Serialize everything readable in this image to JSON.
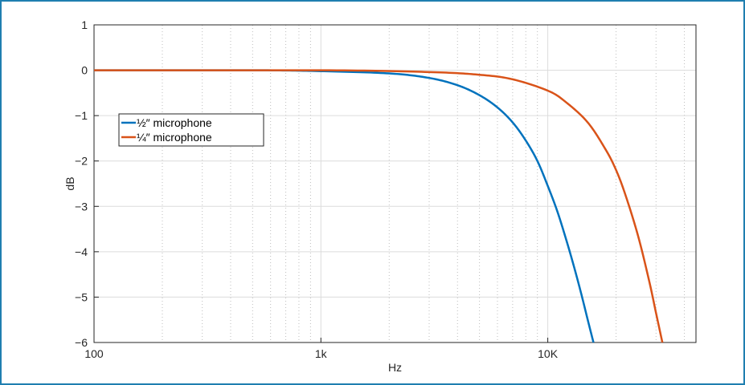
{
  "chart_data": {
    "type": "line",
    "title": "",
    "xlabel": "Hz",
    "ylabel": "dB",
    "x_scale": "log",
    "xlim": [
      100,
      45000
    ],
    "ylim": [
      -6,
      1
    ],
    "x_ticks": [
      {
        "value": 100,
        "label": "100"
      },
      {
        "value": 1000,
        "label": "1k"
      },
      {
        "value": 10000,
        "label": "10K"
      }
    ],
    "y_ticks": [
      {
        "value": 1,
        "label": "1"
      },
      {
        "value": 0,
        "label": "0"
      },
      {
        "value": -1,
        "label": "−1"
      },
      {
        "value": -2,
        "label": "−2"
      },
      {
        "value": -3,
        "label": "−3"
      },
      {
        "value": -4,
        "label": "−4"
      },
      {
        "value": -5,
        "label": "−5"
      },
      {
        "value": -6,
        "label": "−6"
      }
    ],
    "grid": true,
    "legend_position": "left",
    "series": [
      {
        "name": "½″ microphone",
        "color": "#0072bd",
        "x": [
          100,
          500,
          1000,
          2000,
          3000,
          4000,
          5000,
          6000,
          7000,
          8000,
          9000,
          10000,
          11000,
          12000,
          13000,
          14000,
          15000,
          15900
        ],
        "y": [
          0,
          0,
          -0.02,
          -0.07,
          -0.17,
          -0.33,
          -0.55,
          -0.82,
          -1.15,
          -1.55,
          -2.0,
          -2.55,
          -3.1,
          -3.7,
          -4.3,
          -4.9,
          -5.5,
          -6.0
        ]
      },
      {
        "name": "¼″ microphone",
        "color": "#d95319",
        "x": [
          100,
          1000,
          3000,
          5000,
          7000,
          10000,
          12000,
          15000,
          18000,
          20000,
          22000,
          25000,
          28000,
          30000,
          32000
        ],
        "y": [
          0,
          0,
          -0.04,
          -0.1,
          -0.2,
          -0.45,
          -0.7,
          -1.15,
          -1.75,
          -2.2,
          -2.75,
          -3.65,
          -4.65,
          -5.35,
          -6.0
        ]
      }
    ]
  }
}
